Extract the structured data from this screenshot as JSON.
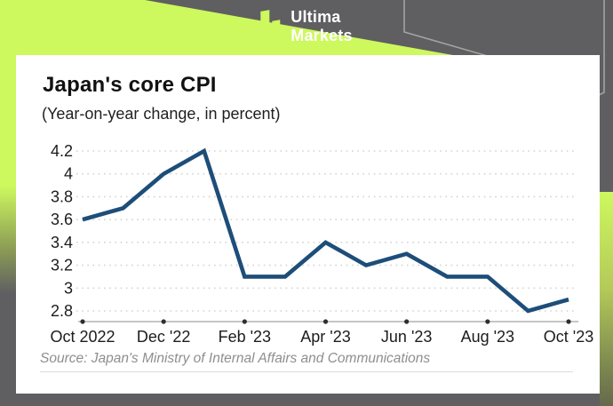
{
  "header": {
    "brand": {
      "line1": "Ultima",
      "line2": "Markets"
    },
    "colors": {
      "background_gray": "#5f5f61",
      "accent_green": "#cdf85e",
      "hexagon_line": "#a3a3a3"
    }
  },
  "chart_data": {
    "type": "line",
    "title": "Japan's core CPI",
    "subtitle": "(Year-on-year change, in percent)",
    "source": "Source: Japan's Ministry of Internal Affairs and Communications",
    "series": [
      {
        "name": "Japan core CPI (year-on-year % change)",
        "values": [
          3.6,
          3.7,
          4.0,
          4.2,
          3.1,
          3.1,
          3.4,
          3.2,
          3.3,
          3.1,
          3.1,
          2.8,
          2.9
        ]
      }
    ],
    "x_ticks": [
      {
        "index": 0,
        "label": "Oct 2022"
      },
      {
        "index": 2,
        "label": "Dec '22"
      },
      {
        "index": 4,
        "label": "Feb '23"
      },
      {
        "index": 6,
        "label": "Apr '23"
      },
      {
        "index": 8,
        "label": "Jun '23"
      },
      {
        "index": 10,
        "label": "Aug '23"
      },
      {
        "index": 12,
        "label": "Oct '23"
      }
    ],
    "y_ticks": [
      {
        "value": 4.2,
        "label": "4.2"
      },
      {
        "value": 4.0,
        "label": "4"
      },
      {
        "value": 3.8,
        "label": "3.8"
      },
      {
        "value": 3.6,
        "label": "3.6"
      },
      {
        "value": 3.4,
        "label": "3.4"
      },
      {
        "value": 3.2,
        "label": "3.2"
      },
      {
        "value": 3.0,
        "label": "3"
      },
      {
        "value": 2.8,
        "label": "2.8"
      }
    ],
    "ylim": [
      2.8,
      4.2
    ],
    "grid": "horizontal-dotted",
    "legend": "none",
    "line_color": "#1d4e79"
  }
}
